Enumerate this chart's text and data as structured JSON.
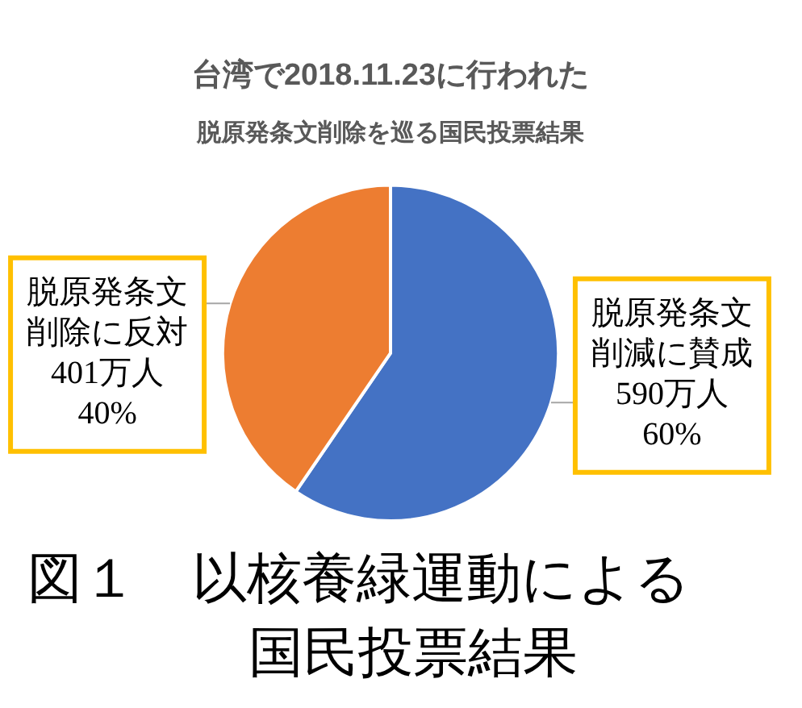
{
  "chart_data": {
    "type": "pie",
    "title": "台湾で2018.11.23に行われた",
    "subtitle": "脱原発条文削除を巡る国民投票結果",
    "categories": [
      "脱原発条文削減に賛成",
      "脱原発条文削除に反対"
    ],
    "values": [
      590,
      401
    ],
    "colors": [
      "#4472c4",
      "#ed7d31"
    ],
    "value_labels": [
      "590万人 60%",
      "401万人 40%"
    ],
    "annotations": [
      "図１　以核養緑運動による国民投票結果"
    ]
  }
}
